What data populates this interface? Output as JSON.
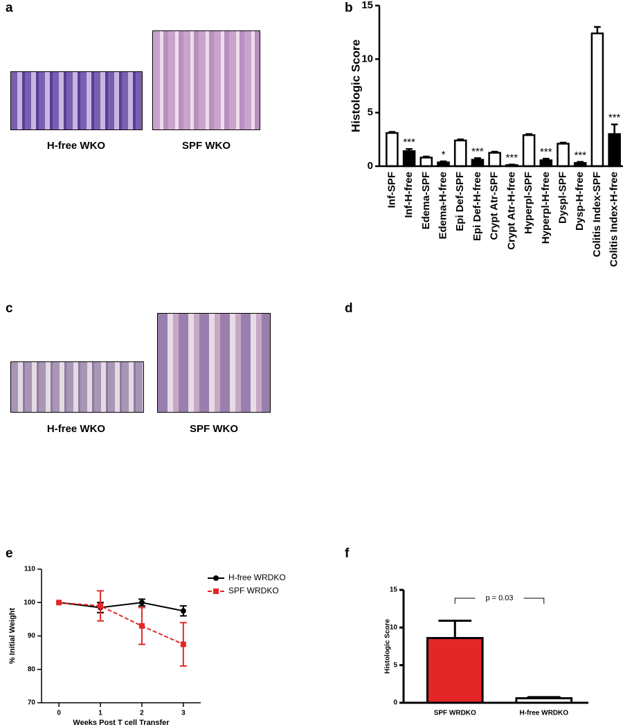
{
  "panel_labels": [
    "a",
    "b",
    "c",
    "d",
    "e",
    "f"
  ],
  "images": [
    {
      "caption": "H-free WKO"
    },
    {
      "caption": "SPF WKO"
    },
    {
      "caption": "H-free WKO"
    },
    {
      "caption": "SPF WKO"
    }
  ],
  "chart_data": [
    {
      "type": "bar",
      "ylabel": "Histologic Score",
      "categories": [
        "Inf-SPF",
        "Inf-H-free",
        "Edema-SPF",
        "Edema-H-free",
        "Epi Def-SPF",
        "Epi Def-H-free",
        "Crypt Atr-SPF",
        "Crypt Atr-H-free",
        "Hyperpl-SPF",
        "Hyperpl-H-free",
        "Dyspl-SPF",
        "Dysp-H-free",
        "Colitis  Index-SPF",
        "Colitis Index-H-free"
      ],
      "values": [
        3.1,
        1.4,
        0.8,
        0.35,
        2.4,
        0.6,
        1.25,
        0.1,
        2.9,
        0.55,
        2.1,
        0.3,
        12.4,
        3.0
      ],
      "errors": [
        0.1,
        0.2,
        0.1,
        0.1,
        0.1,
        0.15,
        0.1,
        0.05,
        0.1,
        0.15,
        0.1,
        0.1,
        0.6,
        0.9
      ],
      "colors": [
        "#ffffff",
        "#000000",
        "#ffffff",
        "#000000",
        "#ffffff",
        "#000000",
        "#ffffff",
        "#000000",
        "#ffffff",
        "#000000",
        "#ffffff",
        "#000000",
        "#ffffff",
        "#000000"
      ],
      "annotations": [
        null,
        "***",
        null,
        "*",
        null,
        "***",
        null,
        "***",
        null,
        "***",
        null,
        "***",
        null,
        "***"
      ],
      "ylim": [
        0,
        15
      ],
      "yticks": [
        0,
        5,
        10,
        15
      ]
    },
    {
      "type": "line",
      "xlabel": "Weeks Post T cell Transfer",
      "ylabel": "% Initial Weight",
      "x": [
        0,
        1,
        2,
        3
      ],
      "series": [
        {
          "name": "H-free WRDKO",
          "color": "#000000",
          "linestyle": "solid",
          "marker": "circle",
          "values": [
            100,
            98.5,
            100,
            97.5
          ],
          "errors": [
            0,
            1.5,
            1,
            1.5
          ]
        },
        {
          "name": "SPF WRDKO",
          "color": "#e32726",
          "linestyle": "dashed",
          "marker": "square",
          "values": [
            100,
            99,
            93,
            87.5
          ],
          "errors": [
            0,
            4.5,
            5.5,
            6.5
          ]
        }
      ],
      "xlim": [
        -0.42,
        3.42
      ],
      "xticks": [
        0,
        1,
        2,
        3
      ],
      "ylim": [
        70,
        110
      ],
      "yticks": [
        70,
        80,
        90,
        100,
        110
      ],
      "legend": "upper right"
    },
    {
      "type": "bar",
      "ylabel": "Histologic Score",
      "categories": [
        "SPF WRDKO",
        "H-free WRDKO"
      ],
      "values": [
        8.6,
        0.6
      ],
      "errors": [
        2.3,
        0.15
      ],
      "colors": [
        "#e32726",
        "#ffffff"
      ],
      "annotation": "p = 0.03",
      "ylim": [
        0,
        15
      ],
      "yticks": [
        0,
        5,
        10,
        15
      ]
    }
  ]
}
